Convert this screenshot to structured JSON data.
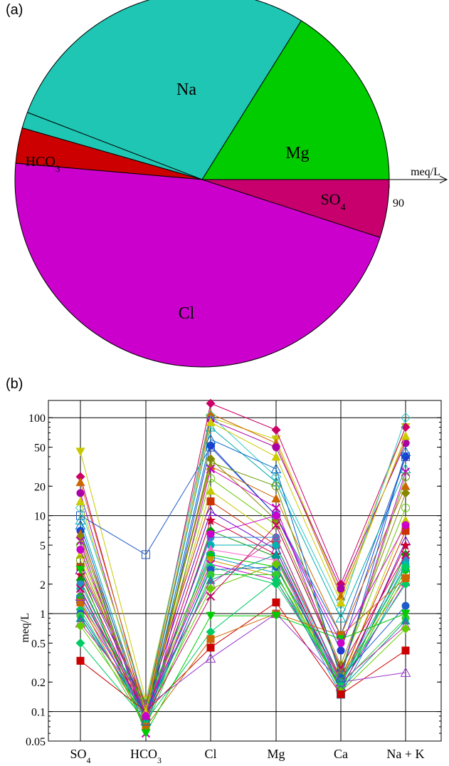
{
  "panel_a_label": "(a)",
  "panel_b_label": "(b)",
  "chart_data": [
    {
      "type": "pie",
      "panel": "(a)",
      "axis_label": "meq/L",
      "axis_tick": "90",
      "slices": [
        {
          "label": "Mg",
          "sub": "",
          "start_deg": 0,
          "end_deg": 58,
          "color": "#00cc00"
        },
        {
          "label": "Na",
          "sub": "",
          "start_deg": 58,
          "end_deg": 159,
          "color": "#1fc6b3"
        },
        {
          "label": "",
          "sub": "",
          "start_deg": 159,
          "end_deg": 164,
          "color": "#1fc6b3"
        },
        {
          "label": "HCO",
          "sub": "3",
          "start_deg": 164,
          "end_deg": 175,
          "color": "#cc0000"
        },
        {
          "label": "Cl",
          "sub": "",
          "start_deg": 175,
          "end_deg": 342,
          "color": "#cc00cc"
        },
        {
          "label": "SO",
          "sub": "4",
          "start_deg": 342,
          "end_deg": 360,
          "color": "#c8006e"
        }
      ]
    },
    {
      "type": "line",
      "panel": "(b)",
      "scale": "log",
      "ylabel": "meq/L",
      "ylim": [
        0.05,
        150
      ],
      "yticks": [
        "100",
        "50",
        "20",
        "10",
        "5",
        "2",
        "1",
        "0.5",
        "0.2",
        "0.1",
        "0.05"
      ],
      "ytick_values": [
        100,
        50,
        20,
        10,
        5,
        2,
        1,
        0.5,
        0.2,
        0.1,
        0.05
      ],
      "categories": [
        {
          "label": "SO",
          "sub": "4"
        },
        {
          "label": "HCO",
          "sub": "3"
        },
        {
          "label": "Cl",
          "sub": ""
        },
        {
          "label": "Mg",
          "sub": ""
        },
        {
          "label": "Ca",
          "sub": ""
        },
        {
          "label": "Na + K",
          "sub": ""
        }
      ],
      "grid": true,
      "series": [
        {
          "values": [
            45,
            0.13,
            100,
            60,
            1.6,
            80
          ],
          "color": "#c8c800",
          "marker": "triangle-down"
        },
        {
          "values": [
            25,
            0.1,
            140,
            75,
            2,
            80
          ],
          "color": "#cc0066",
          "marker": "diamond"
        },
        {
          "values": [
            22,
            0.11,
            110,
            55,
            1.5,
            60
          ],
          "color": "#cc6600",
          "marker": "triangle"
        },
        {
          "values": [
            17,
            0.09,
            95,
            50,
            1.8,
            55
          ],
          "color": "#aa00aa",
          "marker": "circle"
        },
        {
          "values": [
            10,
            4,
            50,
            10,
            0.6,
            40
          ],
          "color": "#1f5bc8",
          "marker": "square-open"
        },
        {
          "values": [
            12,
            0.12,
            105,
            25,
            1.1,
            100
          ],
          "color": "#2ec8c8",
          "marker": "diamond-open"
        },
        {
          "values": [
            9,
            0.09,
            80,
            22,
            0.9,
            30
          ],
          "color": "#00aaaa",
          "marker": "triangle-open"
        },
        {
          "values": [
            7,
            0.07,
            52,
            10,
            0.42,
            40
          ],
          "color": "#1f3bd0",
          "marker": "circle"
        },
        {
          "values": [
            6.5,
            0.1,
            32,
            15,
            0.6,
            20
          ],
          "color": "#cc6600",
          "marker": "triangle"
        },
        {
          "values": [
            6,
            0.08,
            38,
            9,
            0.3,
            17
          ],
          "color": "#888800",
          "marker": "diamond"
        },
        {
          "values": [
            5.5,
            0.06,
            30,
            12,
            0.25,
            28
          ],
          "color": "#c800c8",
          "marker": "x"
        },
        {
          "values": [
            5,
            0.09,
            24,
            8,
            0.27,
            12
          ],
          "color": "#66c800",
          "marker": "circle-open"
        },
        {
          "values": [
            4,
            0.1,
            18,
            6,
            0.2,
            9
          ],
          "color": "#c8c800",
          "marker": "triangle"
        },
        {
          "values": [
            3,
            0.12,
            14,
            5,
            0.22,
            7
          ],
          "color": "#cc3300",
          "marker": "square"
        },
        {
          "values": [
            2.8,
            0.11,
            11,
            4.5,
            0.18,
            5.5
          ],
          "color": "#6600cc",
          "marker": "triangle-open"
        },
        {
          "values": [
            2.5,
            0.09,
            9,
            4,
            0.2,
            5
          ],
          "color": "#cc0033",
          "marker": "star"
        },
        {
          "values": [
            2.2,
            0.08,
            7,
            3.8,
            0.16,
            4
          ],
          "color": "#009900",
          "marker": "diamond"
        },
        {
          "values": [
            2,
            0.1,
            6,
            6,
            0.21,
            3.5
          ],
          "color": "#2e8bc8",
          "marker": "circle"
        },
        {
          "values": [
            1.8,
            0.07,
            5,
            5,
            0.19,
            3.2
          ],
          "color": "#00b3b3",
          "marker": "circle"
        },
        {
          "values": [
            1.6,
            0.08,
            4.5,
            3.5,
            0.2,
            3
          ],
          "color": "#ff66cc",
          "marker": "triangle"
        },
        {
          "values": [
            1.5,
            0.12,
            4,
            3,
            0.17,
            2.8
          ],
          "color": "#00cc00",
          "marker": "circle"
        },
        {
          "values": [
            1.4,
            0.09,
            3.8,
            2.6,
            0.15,
            2.5
          ],
          "color": "#0099cc",
          "marker": "square-open"
        },
        {
          "values": [
            1.3,
            0.11,
            3.5,
            2.4,
            0.23,
            2.3
          ],
          "color": "#cc9900",
          "marker": "triangle-down"
        },
        {
          "values": [
            1.2,
            0.1,
            3.2,
            2.2,
            0.18,
            2.1
          ],
          "color": "#cc00cc",
          "marker": "x"
        },
        {
          "values": [
            1.1,
            0.08,
            3,
            2,
            0.2,
            2
          ],
          "color": "#00cc66",
          "marker": "diamond"
        },
        {
          "values": [
            1,
            0.09,
            2.8,
            3,
            0.22,
            1.2
          ],
          "color": "#1f5bc8",
          "marker": "circle"
        },
        {
          "values": [
            0.95,
            0.07,
            2.5,
            2.5,
            0.19,
            0.9
          ],
          "color": "#33cc33",
          "marker": "circle"
        },
        {
          "values": [
            0.9,
            0.1,
            2.2,
            4,
            0.17,
            0.85
          ],
          "color": "#009999",
          "marker": "triangle"
        },
        {
          "values": [
            0.8,
            0.12,
            2,
            6,
            0.2,
            0.75
          ],
          "color": "#cc3399",
          "marker": "triangle-open"
        },
        {
          "values": [
            0.75,
            0.09,
            1.8,
            3.2,
            0.16,
            0.7
          ],
          "color": "#66cc00",
          "marker": "diamond"
        },
        {
          "values": [
            0.5,
            0.08,
            0.65,
            2.2,
            0.2,
            3
          ],
          "color": "#00cc66",
          "marker": "diamond"
        },
        {
          "values": [
            0.33,
            0.1,
            0.45,
            1.3,
            0.15,
            0.42
          ],
          "color": "#cc0000",
          "marker": "square"
        },
        {
          "values": [
            1.3,
            0.07,
            0.55,
            1.0,
            0.6,
            2.3
          ],
          "color": "#cc6600",
          "marker": "square"
        },
        {
          "values": [
            1.5,
            0.11,
            0.35,
            1.0,
            0.2,
            0.25
          ],
          "color": "#9933cc",
          "marker": "triangle-open"
        },
        {
          "values": [
            2.8,
            0.06,
            0.95,
            0.95,
            0.55,
            1.0
          ],
          "color": "#00cc00",
          "marker": "triangle-down"
        },
        {
          "values": [
            1.8,
            0.09,
            1.5,
            8,
            0.28,
            4
          ],
          "color": "#cc0066",
          "marker": "x"
        },
        {
          "values": [
            3.5,
            0.1,
            35,
            20,
            0.24,
            25
          ],
          "color": "#669900",
          "marker": "circle-open"
        },
        {
          "values": [
            8,
            0.08,
            60,
            30,
            0.22,
            45
          ],
          "color": "#0066cc",
          "marker": "triangle-open"
        },
        {
          "values": [
            14,
            0.1,
            90,
            40,
            1.3,
            65
          ],
          "color": "#cccc00",
          "marker": "triangle"
        },
        {
          "values": [
            4.5,
            0.09,
            6.5,
            10,
            0.5,
            8
          ],
          "color": "#cc00cc",
          "marker": "circle"
        }
      ]
    }
  ]
}
